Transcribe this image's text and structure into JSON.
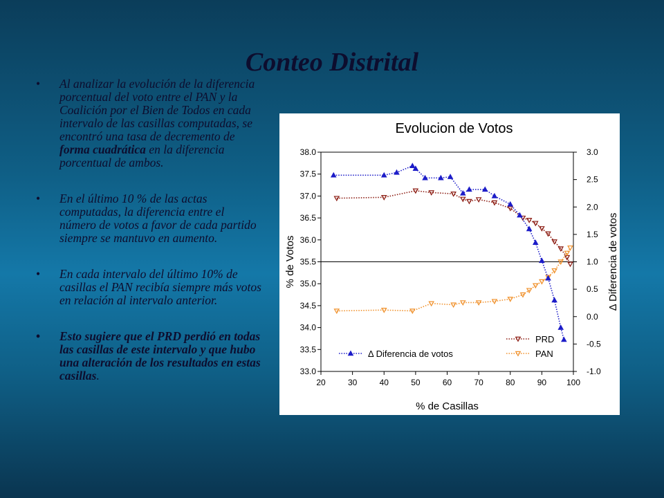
{
  "slide": {
    "title": "Conteo Distrital",
    "bullets": [
      {
        "parts": [
          "Al analizar la evolución de la diferencia porcentual del voto entre el PAN y la Coalición por el Bien de Todos en cada intervalo de las casillas computadas, se encontró una tasa de decremento de ",
          "forma cuadrática",
          " en la diferencia porcentual de ambos."
        ]
      },
      {
        "text": "En el último 10 % de las actas computadas, la diferencia entre el número de votos a favor de cada partido siempre se mantuvo en aumento."
      },
      {
        "text": "En cada intervalo del último 10% de casillas el PAN recibía siempre más votos en relación al intervalo anterior."
      },
      {
        "parts": [
          "Esto sugiere que el PRD perdió en todas las casillas de este intervalo y que hubo una alteración de los resultados en estas casillas",
          "."
        ]
      }
    ],
    "bullet_glyph": "•"
  },
  "chart_data": {
    "type": "line",
    "title": "Evolucion de Votos",
    "xlabel": "% de Casillas",
    "ylabel_left": "% de Votos",
    "ylabel_right": "Δ Diferencia de votos",
    "xlim": [
      20,
      100
    ],
    "ylim_left": [
      33.0,
      38.0
    ],
    "ylim_right": [
      -1.0,
      3.0
    ],
    "x_ticks": [
      "20",
      "30",
      "40",
      "50",
      "60",
      "70",
      "80",
      "90",
      "100"
    ],
    "y_left_ticks": [
      "38.0",
      "37.5",
      "37.0",
      "36.5",
      "36.0",
      "35.5",
      "35.0",
      "34.5",
      "34.0",
      "33.5",
      "33.0"
    ],
    "y_right_ticks": [
      "3.0",
      "2.5",
      "2.0",
      "1.5",
      "1.0",
      "0.5",
      "0.0",
      "-0.5",
      "-1.0"
    ],
    "reference_line_y_left": 35.5,
    "grid": false,
    "legend": [
      {
        "label": "PRD",
        "position": "bottom-right"
      },
      {
        "label": "PAN",
        "position": "bottom-right"
      },
      {
        "label": "Δ Diferencia de votos",
        "position": "bottom-left"
      }
    ],
    "series": [
      {
        "name": "PRD",
        "axis": "left",
        "color": "#8b1a10",
        "marker": "triangle-down",
        "x": [
          25,
          40,
          50,
          55,
          62,
          65,
          67,
          70,
          75,
          80,
          84,
          86,
          88,
          90,
          92,
          94,
          96,
          98,
          99
        ],
        "y": [
          36.95,
          36.97,
          37.12,
          37.08,
          37.05,
          36.93,
          36.88,
          36.92,
          36.85,
          36.72,
          36.5,
          36.45,
          36.38,
          36.26,
          36.14,
          35.96,
          35.8,
          35.6,
          35.45
        ]
      },
      {
        "name": "PAN",
        "axis": "left",
        "color": "#f0902a",
        "marker": "triangle-down",
        "x": [
          25,
          40,
          49,
          55,
          62,
          65,
          70,
          75,
          80,
          84,
          86,
          88,
          90,
          92,
          94,
          96,
          98,
          99
        ],
        "y": [
          34.38,
          34.4,
          34.38,
          34.55,
          34.52,
          34.57,
          34.57,
          34.6,
          34.65,
          34.75,
          34.85,
          34.96,
          35.05,
          35.15,
          35.3,
          35.5,
          35.7,
          35.82
        ]
      },
      {
        "name": "Δ Diferencia de votos",
        "axis": "right",
        "color": "#1c1cc8",
        "marker": "triangle-up",
        "x": [
          24,
          40,
          44,
          49,
          50,
          53,
          58,
          61,
          65,
          67,
          72,
          75,
          80,
          83,
          86,
          88,
          90,
          92,
          94,
          96,
          97
        ],
        "y": [
          2.58,
          2.58,
          2.63,
          2.75,
          2.7,
          2.53,
          2.53,
          2.55,
          2.25,
          2.32,
          2.32,
          2.2,
          2.05,
          1.85,
          1.6,
          1.35,
          1.02,
          0.7,
          0.3,
          -0.2,
          -0.42
        ]
      }
    ]
  }
}
